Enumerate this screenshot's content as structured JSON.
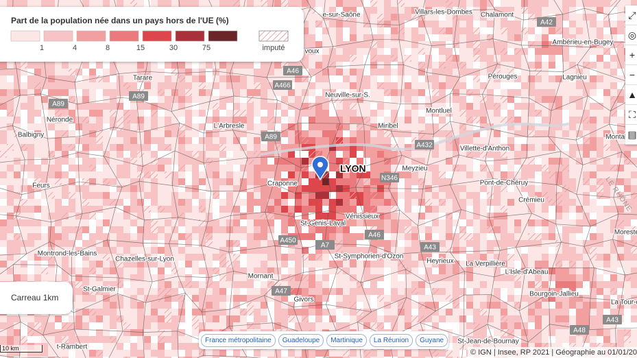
{
  "legend": {
    "title": "Part de la population née dans un pays hors de l'UE (%)",
    "colors": [
      "#fde6e6",
      "#f8c3c4",
      "#f29fa0",
      "#eb7a7c",
      "#dd474b",
      "#a8313a",
      "#6b2529"
    ],
    "ticks": [
      1,
      4,
      8,
      15,
      30,
      75
    ],
    "imputed": "imputé"
  },
  "places": [
    {
      "name": "e-sur-Saône"
    },
    {
      "name": "Villars-les-Dombes"
    },
    {
      "name": "Chalamont"
    },
    {
      "name": "Ambérieu-en-Bugey"
    },
    {
      "name": "voux"
    },
    {
      "name": "Tarare"
    },
    {
      "name": "Pérouges"
    },
    {
      "name": "Lagnieu"
    },
    {
      "name": "Neuville-sur-S."
    },
    {
      "name": "Néronde"
    },
    {
      "name": "L'Arbresle"
    },
    {
      "name": "Miribel"
    },
    {
      "name": "Montluel"
    },
    {
      "name": "Balbigny"
    },
    {
      "name": "Villette-d'Anthon"
    },
    {
      "name": "Meyzieu"
    },
    {
      "name": "Craponne"
    },
    {
      "name": "Feurs"
    },
    {
      "name": "Pont-de-Chéruy"
    },
    {
      "name": "Crémieu"
    },
    {
      "name": "Vénissieux"
    },
    {
      "name": "St-Genis-Laval"
    },
    {
      "name": "Montrond-les-Bains"
    },
    {
      "name": "Chazelles-sur-Lyon"
    },
    {
      "name": "St-Symphorien-d'Ozon"
    },
    {
      "name": "Heyrieux"
    },
    {
      "name": "La Verpillière"
    },
    {
      "name": "L'Isle-d'Abeau"
    },
    {
      "name": "Mornant"
    },
    {
      "name": "St-Galmier"
    },
    {
      "name": "Bourgoin-Jallieu"
    },
    {
      "name": "Givors"
    },
    {
      "name": "La Tour-d"
    },
    {
      "name": "St-Jean-de-Bournay"
    },
    {
      "name": "t-Rambert"
    },
    {
      "name": "Montalieu"
    },
    {
      "name": "Morestel"
    }
  ],
  "city": "LYON",
  "river": "LE RHÔNE",
  "roads": [
    "A42",
    "A46",
    "A466",
    "A89",
    "A89",
    "A89",
    "A432",
    "N346",
    "A46",
    "A450",
    "A7",
    "A43",
    "A47",
    "A43",
    "A48"
  ],
  "scale_box": "Carreau 1km",
  "scale_bar": "10 km",
  "territories": [
    "France métropolitaine",
    "Guadeloupe",
    "Martinique",
    "La Réunion",
    "Guyane"
  ],
  "attribution": "© IGN | Insee, RP 2021 | Géographie au 01/01/20"
}
